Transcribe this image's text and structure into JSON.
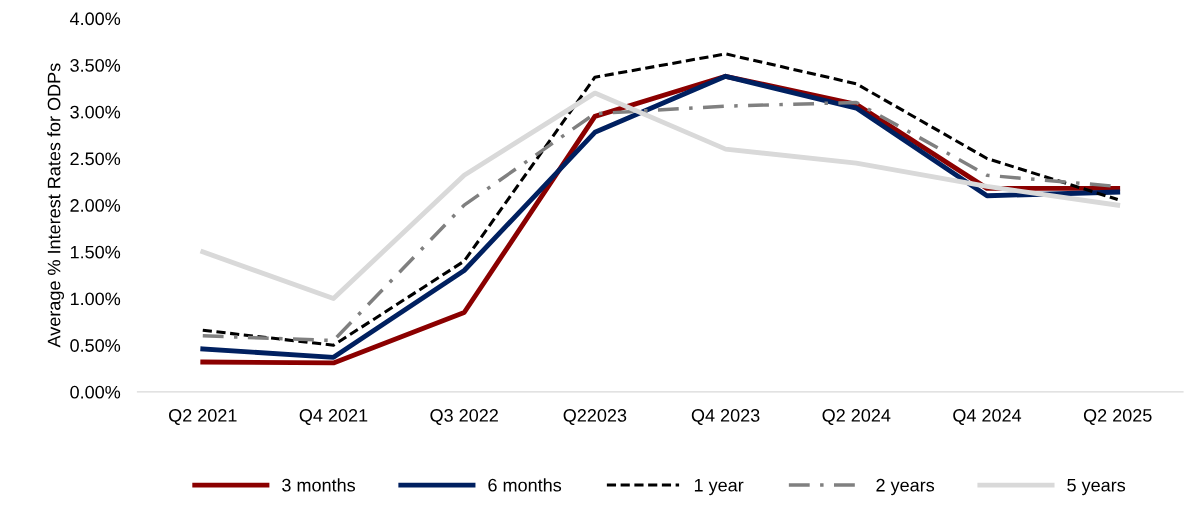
{
  "chart_data": {
    "type": "line",
    "ylabel": "Average % Interest Rates for ODPs",
    "categories": [
      "Q2 2021",
      "Q4 2021",
      "Q3 2022",
      "Q22023",
      "Q4 2023",
      "Q2 2024",
      "Q4 2024",
      "Q2 2025"
    ],
    "series": [
      {
        "name": "3 months",
        "color": "#8b0000",
        "line_style": "solid",
        "values": [
          0.32,
          0.31,
          0.85,
          2.95,
          3.38,
          3.08,
          2.18,
          2.18
        ]
      },
      {
        "name": "6 months",
        "color": "#002060",
        "line_style": "solid",
        "values": [
          0.46,
          0.37,
          1.3,
          2.78,
          3.38,
          3.04,
          2.1,
          2.14
        ]
      },
      {
        "name": "1 year",
        "color": "#000000",
        "line_style": "dashed",
        "values": [
          0.66,
          0.5,
          1.4,
          3.37,
          3.62,
          3.3,
          2.5,
          2.06
        ]
      },
      {
        "name": "2 years",
        "color": "#808080",
        "line_style": "dashdot",
        "values": [
          0.6,
          0.55,
          2.0,
          2.98,
          3.06,
          3.1,
          2.32,
          2.2
        ]
      },
      {
        "name": "5 years",
        "color": "#d9d9d9",
        "line_style": "solid",
        "values": [
          1.5,
          1.0,
          2.32,
          3.2,
          2.6,
          2.45,
          2.2,
          2.0
        ]
      }
    ],
    "ylim": [
      0,
      4
    ],
    "yticks": [
      {
        "value": 0,
        "label": "0.00%"
      },
      {
        "value": 0.5,
        "label": "0.50%"
      },
      {
        "value": 1,
        "label": "1.00%"
      },
      {
        "value": 1.5,
        "label": "1.50%"
      },
      {
        "value": 2,
        "label": "2.00%"
      },
      {
        "value": 2.5,
        "label": "2.50%"
      },
      {
        "value": 3,
        "label": "3.00%"
      },
      {
        "value": 3.5,
        "label": "3.50%"
      },
      {
        "value": 4,
        "label": "4.00%"
      }
    ],
    "grid": false,
    "legend": "bottom",
    "marker": "none"
  }
}
